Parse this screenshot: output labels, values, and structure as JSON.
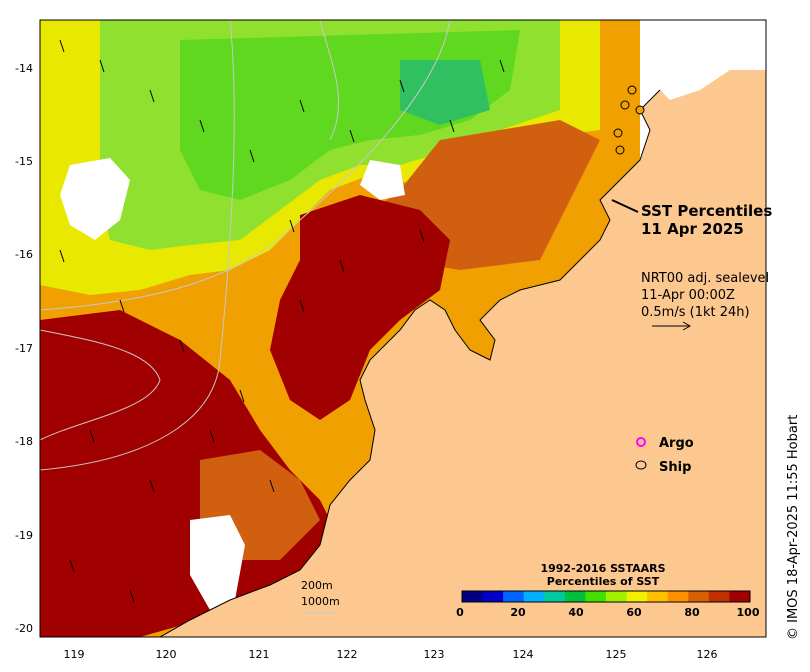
{
  "title": {
    "line1": "SST Percentiles",
    "line2": "11 Apr 2025"
  },
  "current_vectors": {
    "line1": "NRT00 adj. sealevel",
    "line2": "11-Apr 00:00Z",
    "line3": "0.5m/s (1kt 24h)"
  },
  "legend": {
    "argo": "Argo",
    "ship": "Ship",
    "argo_color": "#ff00ff",
    "ship_color": "#000000"
  },
  "depth_contours": {
    "c200": "200m",
    "c1000": "1000m"
  },
  "colorbar": {
    "title1": "1992-2016 SSTAARS",
    "title2": "Percentiles of SST",
    "ticks": [
      "0",
      "20",
      "40",
      "60",
      "80",
      "100"
    ],
    "colors": [
      "#000080",
      "#0000c8",
      "#0064ff",
      "#00b0ff",
      "#00c8a0",
      "#00c040",
      "#40e000",
      "#a0f000",
      "#f0f000",
      "#ffc000",
      "#ff9000",
      "#d86000",
      "#c03000",
      "#a00000"
    ]
  },
  "credit": "© IMOS 18-Apr-2025 11:55 Hobart",
  "axes": {
    "x_ticks": [
      "119",
      "120",
      "121",
      "122",
      "123",
      "124",
      "125",
      "126"
    ],
    "y_ticks": [
      "-14",
      "-15",
      "-16",
      "-17",
      "-18",
      "-19",
      "-20"
    ]
  },
  "colors": {
    "land": "#fcc890",
    "p_low_green": "#60d820",
    "p_green": "#90e030",
    "p_yellow": "#e8e800",
    "p_orange": "#f0a000",
    "p_darkorange": "#d06010",
    "p_red": "#a00000"
  }
}
